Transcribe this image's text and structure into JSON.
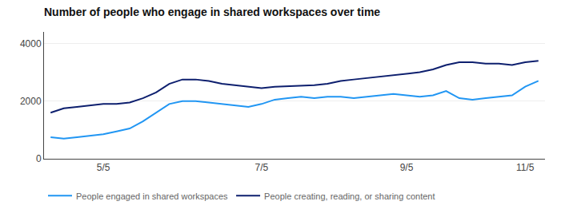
{
  "chart_data": {
    "type": "line",
    "title": "Number of people who engage in shared workspaces over time",
    "categories": [
      null,
      null,
      null,
      null,
      "5/5",
      null,
      null,
      null,
      null,
      null,
      null,
      null,
      null,
      null,
      null,
      null,
      "7/5",
      null,
      null,
      null,
      null,
      null,
      null,
      null,
      null,
      null,
      null,
      "9/5",
      null,
      null,
      null,
      null,
      null,
      null,
      null,
      null,
      "11/5",
      null
    ],
    "series": [
      {
        "name": "People engaged in shared workspaces",
        "color": "#2196F3",
        "values": [
          750,
          700,
          750,
          800,
          850,
          950,
          1050,
          1300,
          1600,
          1900,
          2000,
          2000,
          1950,
          1900,
          1850,
          1800,
          1900,
          2050,
          2100,
          2150,
          2100,
          2150,
          2150,
          2100,
          2150,
          2200,
          2250,
          2200,
          2150,
          2200,
          2350,
          2100,
          2050,
          2100,
          2150,
          2200,
          2500,
          2700
        ]
      },
      {
        "name": "People creating, reading, or sharing content",
        "color": "#0D1F6E",
        "values": [
          1600,
          1750,
          1800,
          1850,
          1900,
          1900,
          1950,
          2100,
          2300,
          2600,
          2750,
          2750,
          2700,
          2600,
          2550,
          2500,
          2450,
          2500,
          2520,
          2520,
          2550,
          2600,
          2700,
          2750,
          2800,
          2850,
          2900,
          2950,
          3000,
          3100,
          3250,
          3350,
          3350,
          3300,
          3300,
          3250,
          3350,
          3400
        ]
      }
    ],
    "ylim": [
      0,
      4400
    ],
    "yticks": [
      0,
      2000,
      4000
    ],
    "grid": "y",
    "legend": "bottom"
  }
}
